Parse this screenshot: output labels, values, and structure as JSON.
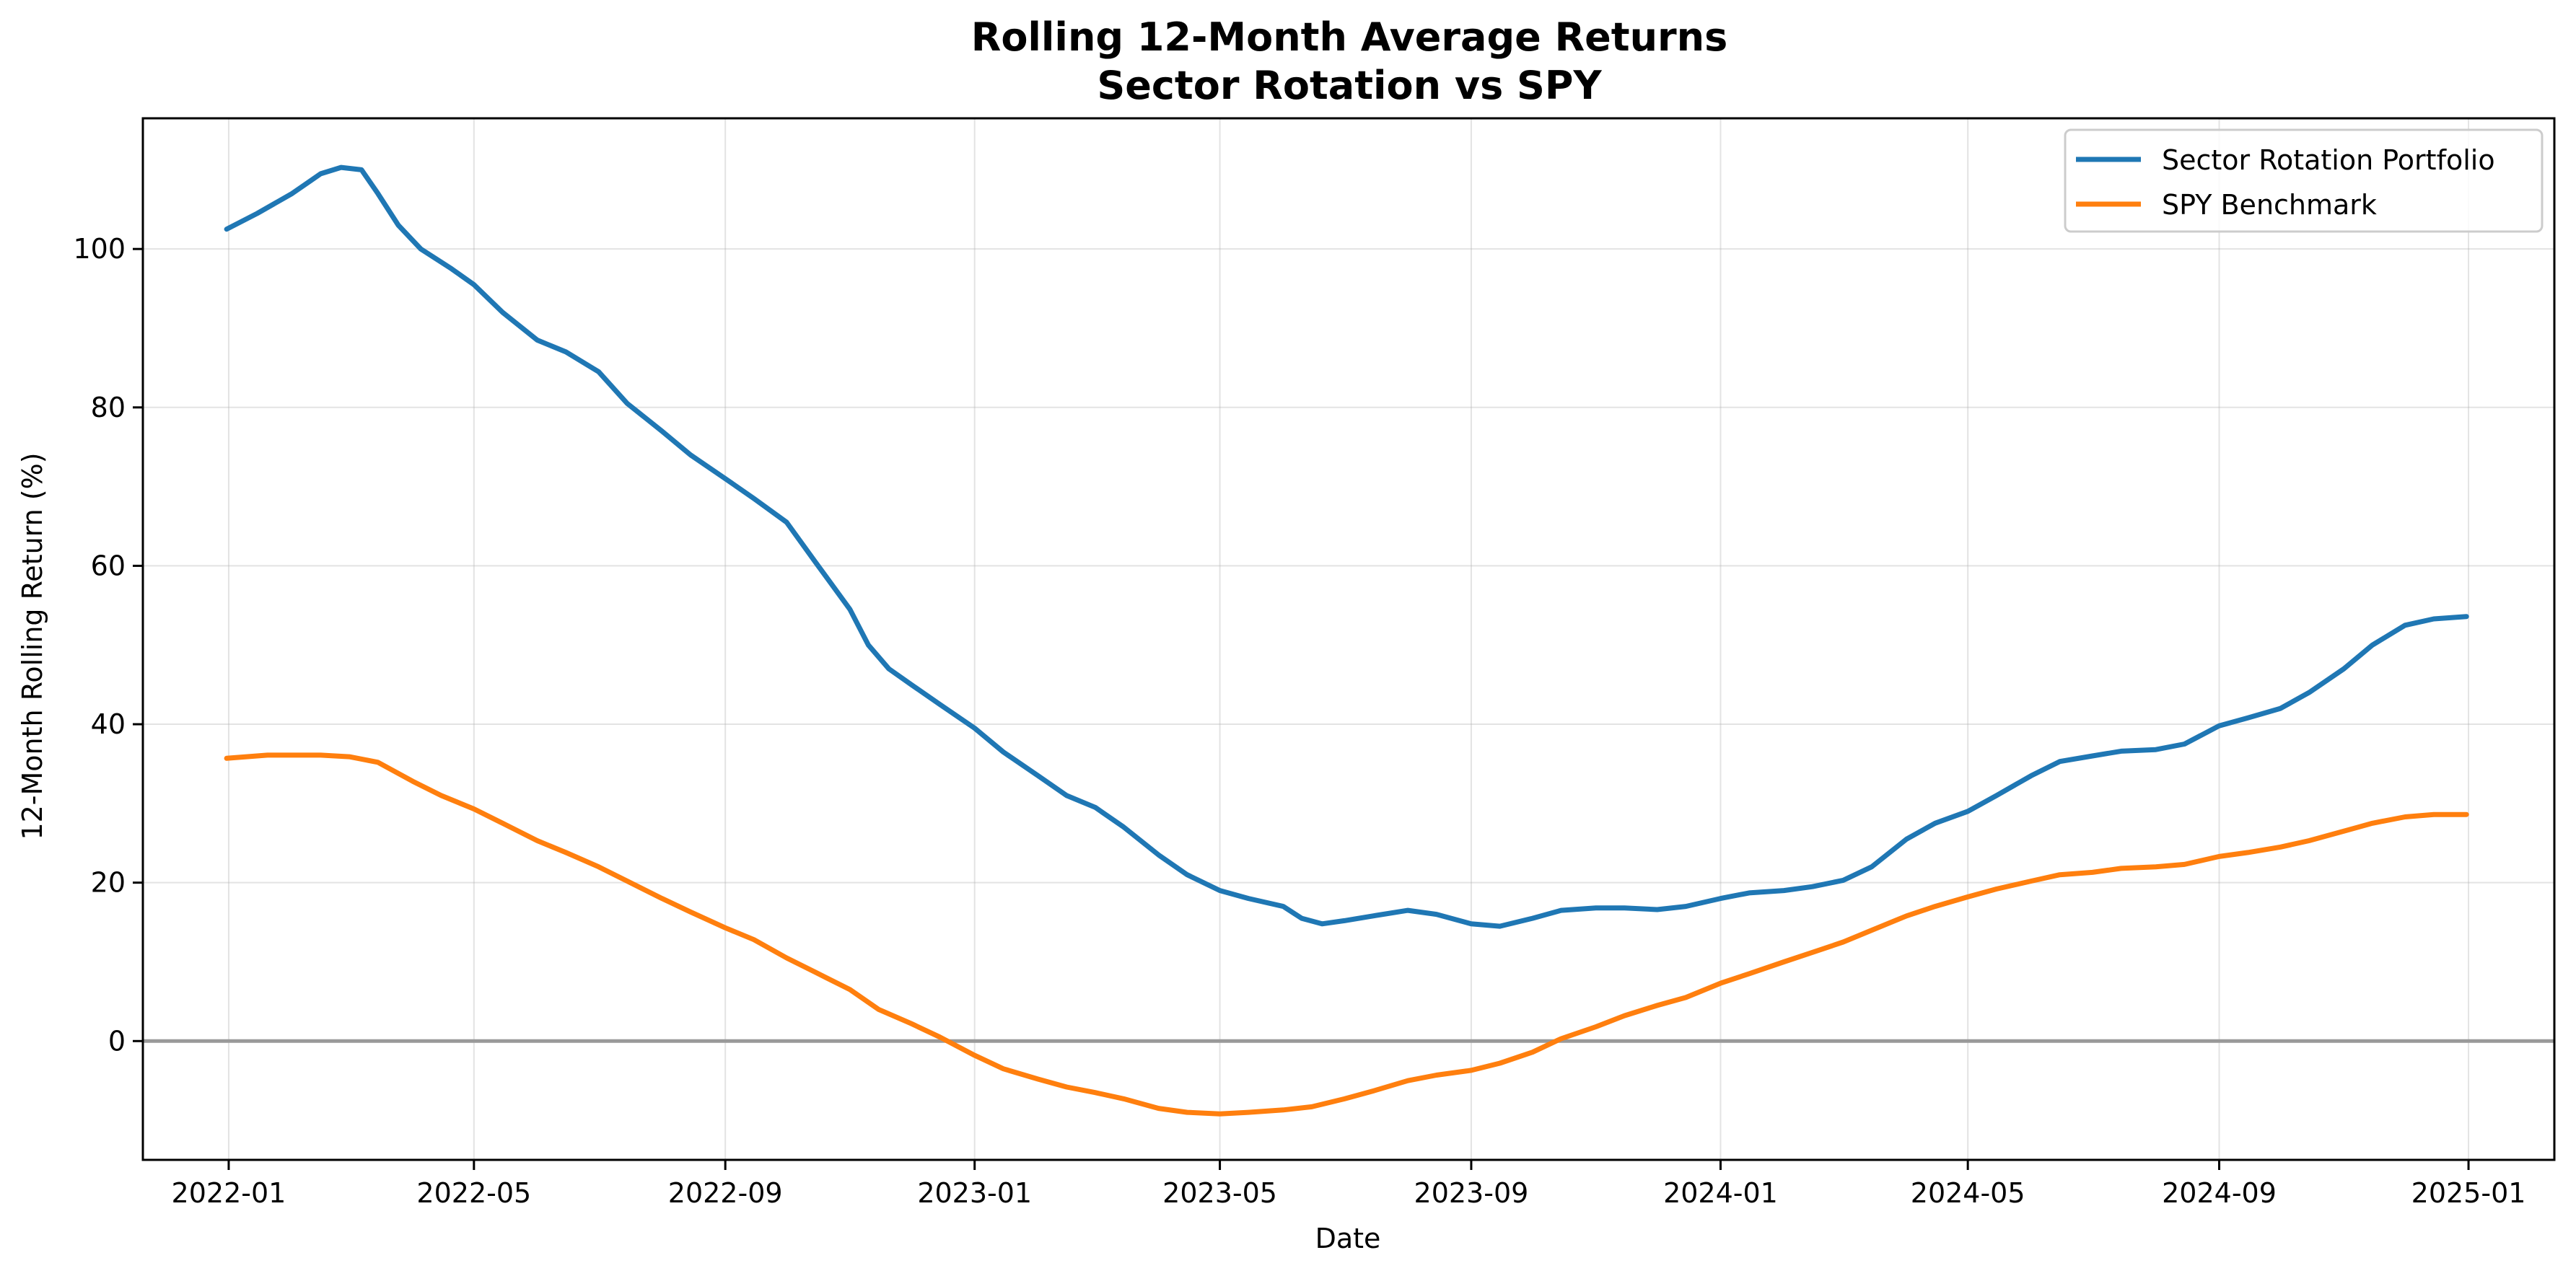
{
  "chart_data": {
    "type": "line",
    "title_line1": "Rolling 12-Month Average Returns",
    "title_line2": "Sector Rotation vs SPY",
    "xlabel": "Date",
    "ylabel": "12-Month Rolling Return (%)",
    "xlim": [
      "2021-11-20",
      "2025-02-12"
    ],
    "ylim": [
      -15,
      116.5
    ],
    "x_ticks": [
      "2022-01",
      "2022-05",
      "2022-09",
      "2023-01",
      "2023-05",
      "2023-09",
      "2024-01",
      "2024-05",
      "2024-09",
      "2025-01"
    ],
    "y_ticks": [
      0,
      20,
      40,
      60,
      80,
      100
    ],
    "grid": true,
    "zero_line": true,
    "legend_position": "top-right",
    "series": [
      {
        "name": "Sector Rotation Portfolio",
        "color": "#1f77b4",
        "points": [
          [
            "2021-12-31",
            102.5
          ],
          [
            "2022-01-15",
            104.5
          ],
          [
            "2022-02-01",
            107.0
          ],
          [
            "2022-02-15",
            109.5
          ],
          [
            "2022-02-25",
            110.3
          ],
          [
            "2022-03-07",
            110.0
          ],
          [
            "2022-03-15",
            107.0
          ],
          [
            "2022-03-25",
            103.0
          ],
          [
            "2022-04-05",
            100.0
          ],
          [
            "2022-04-20",
            97.5
          ],
          [
            "2022-05-01",
            95.5
          ],
          [
            "2022-05-15",
            92.0
          ],
          [
            "2022-06-01",
            88.5
          ],
          [
            "2022-06-15",
            87.0
          ],
          [
            "2022-07-01",
            84.5
          ],
          [
            "2022-07-15",
            80.5
          ],
          [
            "2022-08-01",
            77.0
          ],
          [
            "2022-08-15",
            74.0
          ],
          [
            "2022-09-01",
            71.0
          ],
          [
            "2022-09-15",
            68.5
          ],
          [
            "2022-10-01",
            65.5
          ],
          [
            "2022-10-15",
            60.5
          ],
          [
            "2022-11-01",
            54.5
          ],
          [
            "2022-11-10",
            50.0
          ],
          [
            "2022-11-20",
            47.0
          ],
          [
            "2022-12-01",
            45.0
          ],
          [
            "2022-12-15",
            42.5
          ],
          [
            "2023-01-01",
            39.5
          ],
          [
            "2023-01-15",
            36.5
          ],
          [
            "2023-02-01",
            33.5
          ],
          [
            "2023-02-15",
            31.0
          ],
          [
            "2023-03-01",
            29.5
          ],
          [
            "2023-03-15",
            27.0
          ],
          [
            "2023-04-01",
            23.5
          ],
          [
            "2023-04-15",
            21.0
          ],
          [
            "2023-05-01",
            19.0
          ],
          [
            "2023-05-15",
            18.0
          ],
          [
            "2023-06-01",
            17.0
          ],
          [
            "2023-06-10",
            15.5
          ],
          [
            "2023-06-20",
            14.8
          ],
          [
            "2023-07-01",
            15.2
          ],
          [
            "2023-07-15",
            15.8
          ],
          [
            "2023-08-01",
            16.5
          ],
          [
            "2023-08-15",
            16.0
          ],
          [
            "2023-09-01",
            14.8
          ],
          [
            "2023-09-15",
            14.5
          ],
          [
            "2023-10-01",
            15.5
          ],
          [
            "2023-10-15",
            16.5
          ],
          [
            "2023-11-01",
            16.8
          ],
          [
            "2023-11-15",
            16.8
          ],
          [
            "2023-12-01",
            16.6
          ],
          [
            "2023-12-15",
            17.0
          ],
          [
            "2024-01-01",
            18.0
          ],
          [
            "2024-01-15",
            18.7
          ],
          [
            "2024-02-01",
            19.0
          ],
          [
            "2024-02-15",
            19.5
          ],
          [
            "2024-03-01",
            20.3
          ],
          [
            "2024-03-15",
            22.0
          ],
          [
            "2024-04-01",
            25.5
          ],
          [
            "2024-04-15",
            27.5
          ],
          [
            "2024-05-01",
            29.0
          ],
          [
            "2024-05-15",
            31.0
          ],
          [
            "2024-06-01",
            33.5
          ],
          [
            "2024-06-15",
            35.3
          ],
          [
            "2024-07-01",
            36.0
          ],
          [
            "2024-07-15",
            36.6
          ],
          [
            "2024-08-01",
            36.8
          ],
          [
            "2024-08-15",
            37.5
          ],
          [
            "2024-09-01",
            39.8
          ],
          [
            "2024-09-15",
            40.8
          ],
          [
            "2024-10-01",
            42.0
          ],
          [
            "2024-10-15",
            44.0
          ],
          [
            "2024-11-01",
            47.0
          ],
          [
            "2024-11-15",
            50.0
          ],
          [
            "2024-12-01",
            52.5
          ],
          [
            "2024-12-15",
            53.3
          ],
          [
            "2024-12-31",
            53.6
          ]
        ]
      },
      {
        "name": "SPY Benchmark",
        "color": "#ff7f0e",
        "points": [
          [
            "2021-12-31",
            35.7
          ],
          [
            "2022-01-20",
            36.1
          ],
          [
            "2022-02-15",
            36.1
          ],
          [
            "2022-03-01",
            35.9
          ],
          [
            "2022-03-15",
            35.2
          ],
          [
            "2022-04-01",
            32.8
          ],
          [
            "2022-04-15",
            31.0
          ],
          [
            "2022-05-01",
            29.3
          ],
          [
            "2022-05-15",
            27.5
          ],
          [
            "2022-06-01",
            25.3
          ],
          [
            "2022-06-15",
            23.8
          ],
          [
            "2022-07-01",
            22.0
          ],
          [
            "2022-07-15",
            20.2
          ],
          [
            "2022-08-01",
            18.0
          ],
          [
            "2022-08-15",
            16.3
          ],
          [
            "2022-09-01",
            14.3
          ],
          [
            "2022-09-15",
            12.8
          ],
          [
            "2022-10-01",
            10.5
          ],
          [
            "2022-10-15",
            8.7
          ],
          [
            "2022-11-01",
            6.5
          ],
          [
            "2022-11-15",
            4.0
          ],
          [
            "2022-12-01",
            2.2
          ],
          [
            "2022-12-15",
            0.5
          ],
          [
            "2023-01-01",
            -1.8
          ],
          [
            "2023-01-15",
            -3.5
          ],
          [
            "2023-02-01",
            -4.8
          ],
          [
            "2023-02-15",
            -5.8
          ],
          [
            "2023-03-01",
            -6.5
          ],
          [
            "2023-03-15",
            -7.3
          ],
          [
            "2023-04-01",
            -8.5
          ],
          [
            "2023-04-15",
            -9.0
          ],
          [
            "2023-05-01",
            -9.2
          ],
          [
            "2023-05-15",
            -9.0
          ],
          [
            "2023-06-01",
            -8.7
          ],
          [
            "2023-06-15",
            -8.3
          ],
          [
            "2023-07-01",
            -7.3
          ],
          [
            "2023-07-15",
            -6.3
          ],
          [
            "2023-08-01",
            -5.0
          ],
          [
            "2023-08-15",
            -4.3
          ],
          [
            "2023-09-01",
            -3.7
          ],
          [
            "2023-09-15",
            -2.8
          ],
          [
            "2023-10-01",
            -1.4
          ],
          [
            "2023-10-15",
            0.3
          ],
          [
            "2023-11-01",
            1.8
          ],
          [
            "2023-11-15",
            3.2
          ],
          [
            "2023-12-01",
            4.5
          ],
          [
            "2023-12-15",
            5.5
          ],
          [
            "2024-01-01",
            7.3
          ],
          [
            "2024-01-15",
            8.5
          ],
          [
            "2024-02-01",
            10.0
          ],
          [
            "2024-02-15",
            11.2
          ],
          [
            "2024-03-01",
            12.5
          ],
          [
            "2024-03-15",
            14.0
          ],
          [
            "2024-04-01",
            15.8
          ],
          [
            "2024-04-15",
            17.0
          ],
          [
            "2024-05-01",
            18.2
          ],
          [
            "2024-05-15",
            19.2
          ],
          [
            "2024-06-01",
            20.2
          ],
          [
            "2024-06-15",
            21.0
          ],
          [
            "2024-07-01",
            21.3
          ],
          [
            "2024-07-15",
            21.8
          ],
          [
            "2024-08-01",
            22.0
          ],
          [
            "2024-08-15",
            22.3
          ],
          [
            "2024-09-01",
            23.3
          ],
          [
            "2024-09-15",
            23.8
          ],
          [
            "2024-10-01",
            24.5
          ],
          [
            "2024-10-15",
            25.3
          ],
          [
            "2024-11-01",
            26.5
          ],
          [
            "2024-11-15",
            27.5
          ],
          [
            "2024-12-01",
            28.3
          ],
          [
            "2024-12-15",
            28.6
          ],
          [
            "2024-12-31",
            28.6
          ]
        ]
      }
    ]
  }
}
